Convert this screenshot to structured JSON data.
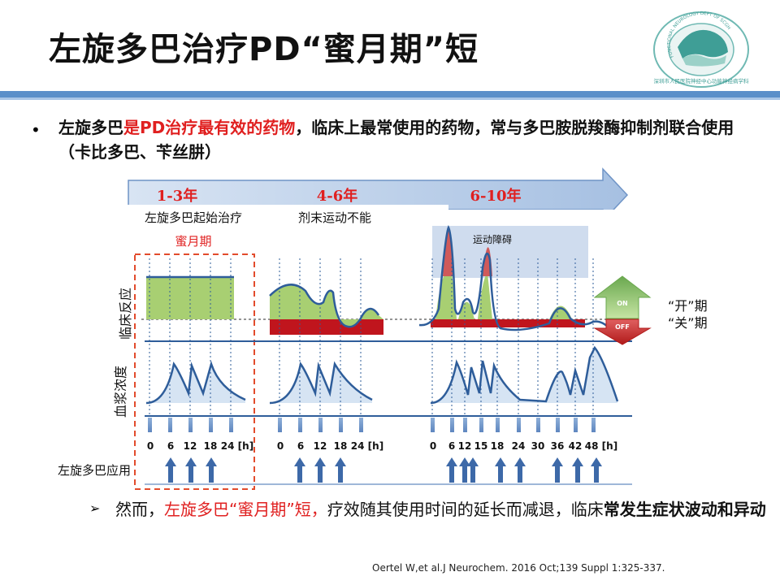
{
  "title": "左旋多巴治疗PD“蜜月期”短",
  "logo": {
    "ring_text": "FUNCTIONAL NEUROLOGY DEPT OF SCGH",
    "bottom_text": "深圳市人民医院神经中心功能神经病学科"
  },
  "bullet_symbol": "•",
  "intro": {
    "part1": "左旋多巴",
    "highlight": "是PD治疗最有效的药物",
    "part2": "，临床上最常使用的药物，常与多巴胺脱羧酶抑制剂联合使用 （卡比多巴、苄丝肼）"
  },
  "timeline": {
    "stages": [
      "1-3年",
      "4-6年",
      "6-10年"
    ],
    "stage_notes": [
      "左旋多巴起始治疗",
      "剂末运动不能"
    ],
    "honeymoon_label": "蜜月期",
    "dyskinesia_label": "运动障碍",
    "on_label": "ON",
    "off_label": "OFF",
    "on_legend": "“开”期",
    "off_legend": "“关”期",
    "axis_clinical": "临床反应",
    "axis_plasma": "血浆浓度",
    "dosing_label": "左旋多巴应用",
    "ticks_1": [
      "0",
      "6",
      "12",
      "18",
      "24 [h]"
    ],
    "ticks_2": [
      "0",
      "6",
      "12",
      "18",
      "24 [h]"
    ],
    "ticks_3": [
      "0",
      "6",
      "12",
      "15",
      "18",
      "24",
      "30",
      "36",
      "42",
      "48 [h]"
    ]
  },
  "sub_bullet_symbol": "➢",
  "conclusion": {
    "part1": "然而，",
    "highlight": "左旋多巴“蜜月期”短，",
    "part2": "疗效随其使用时间的延长而减退，临床",
    "bold_end": "常发生症状波动和异动"
  },
  "citation": "Oertel W,et al.J Neurochem. 2016 Oct;139 Suppl 1:325-337.",
  "colors": {
    "accent_blue": "#5b8fc9",
    "on_green": "#a8cf72",
    "off_red": "#c0151d",
    "dyskinesia_red": "#d05a5a",
    "text_red": "#e02020"
  }
}
